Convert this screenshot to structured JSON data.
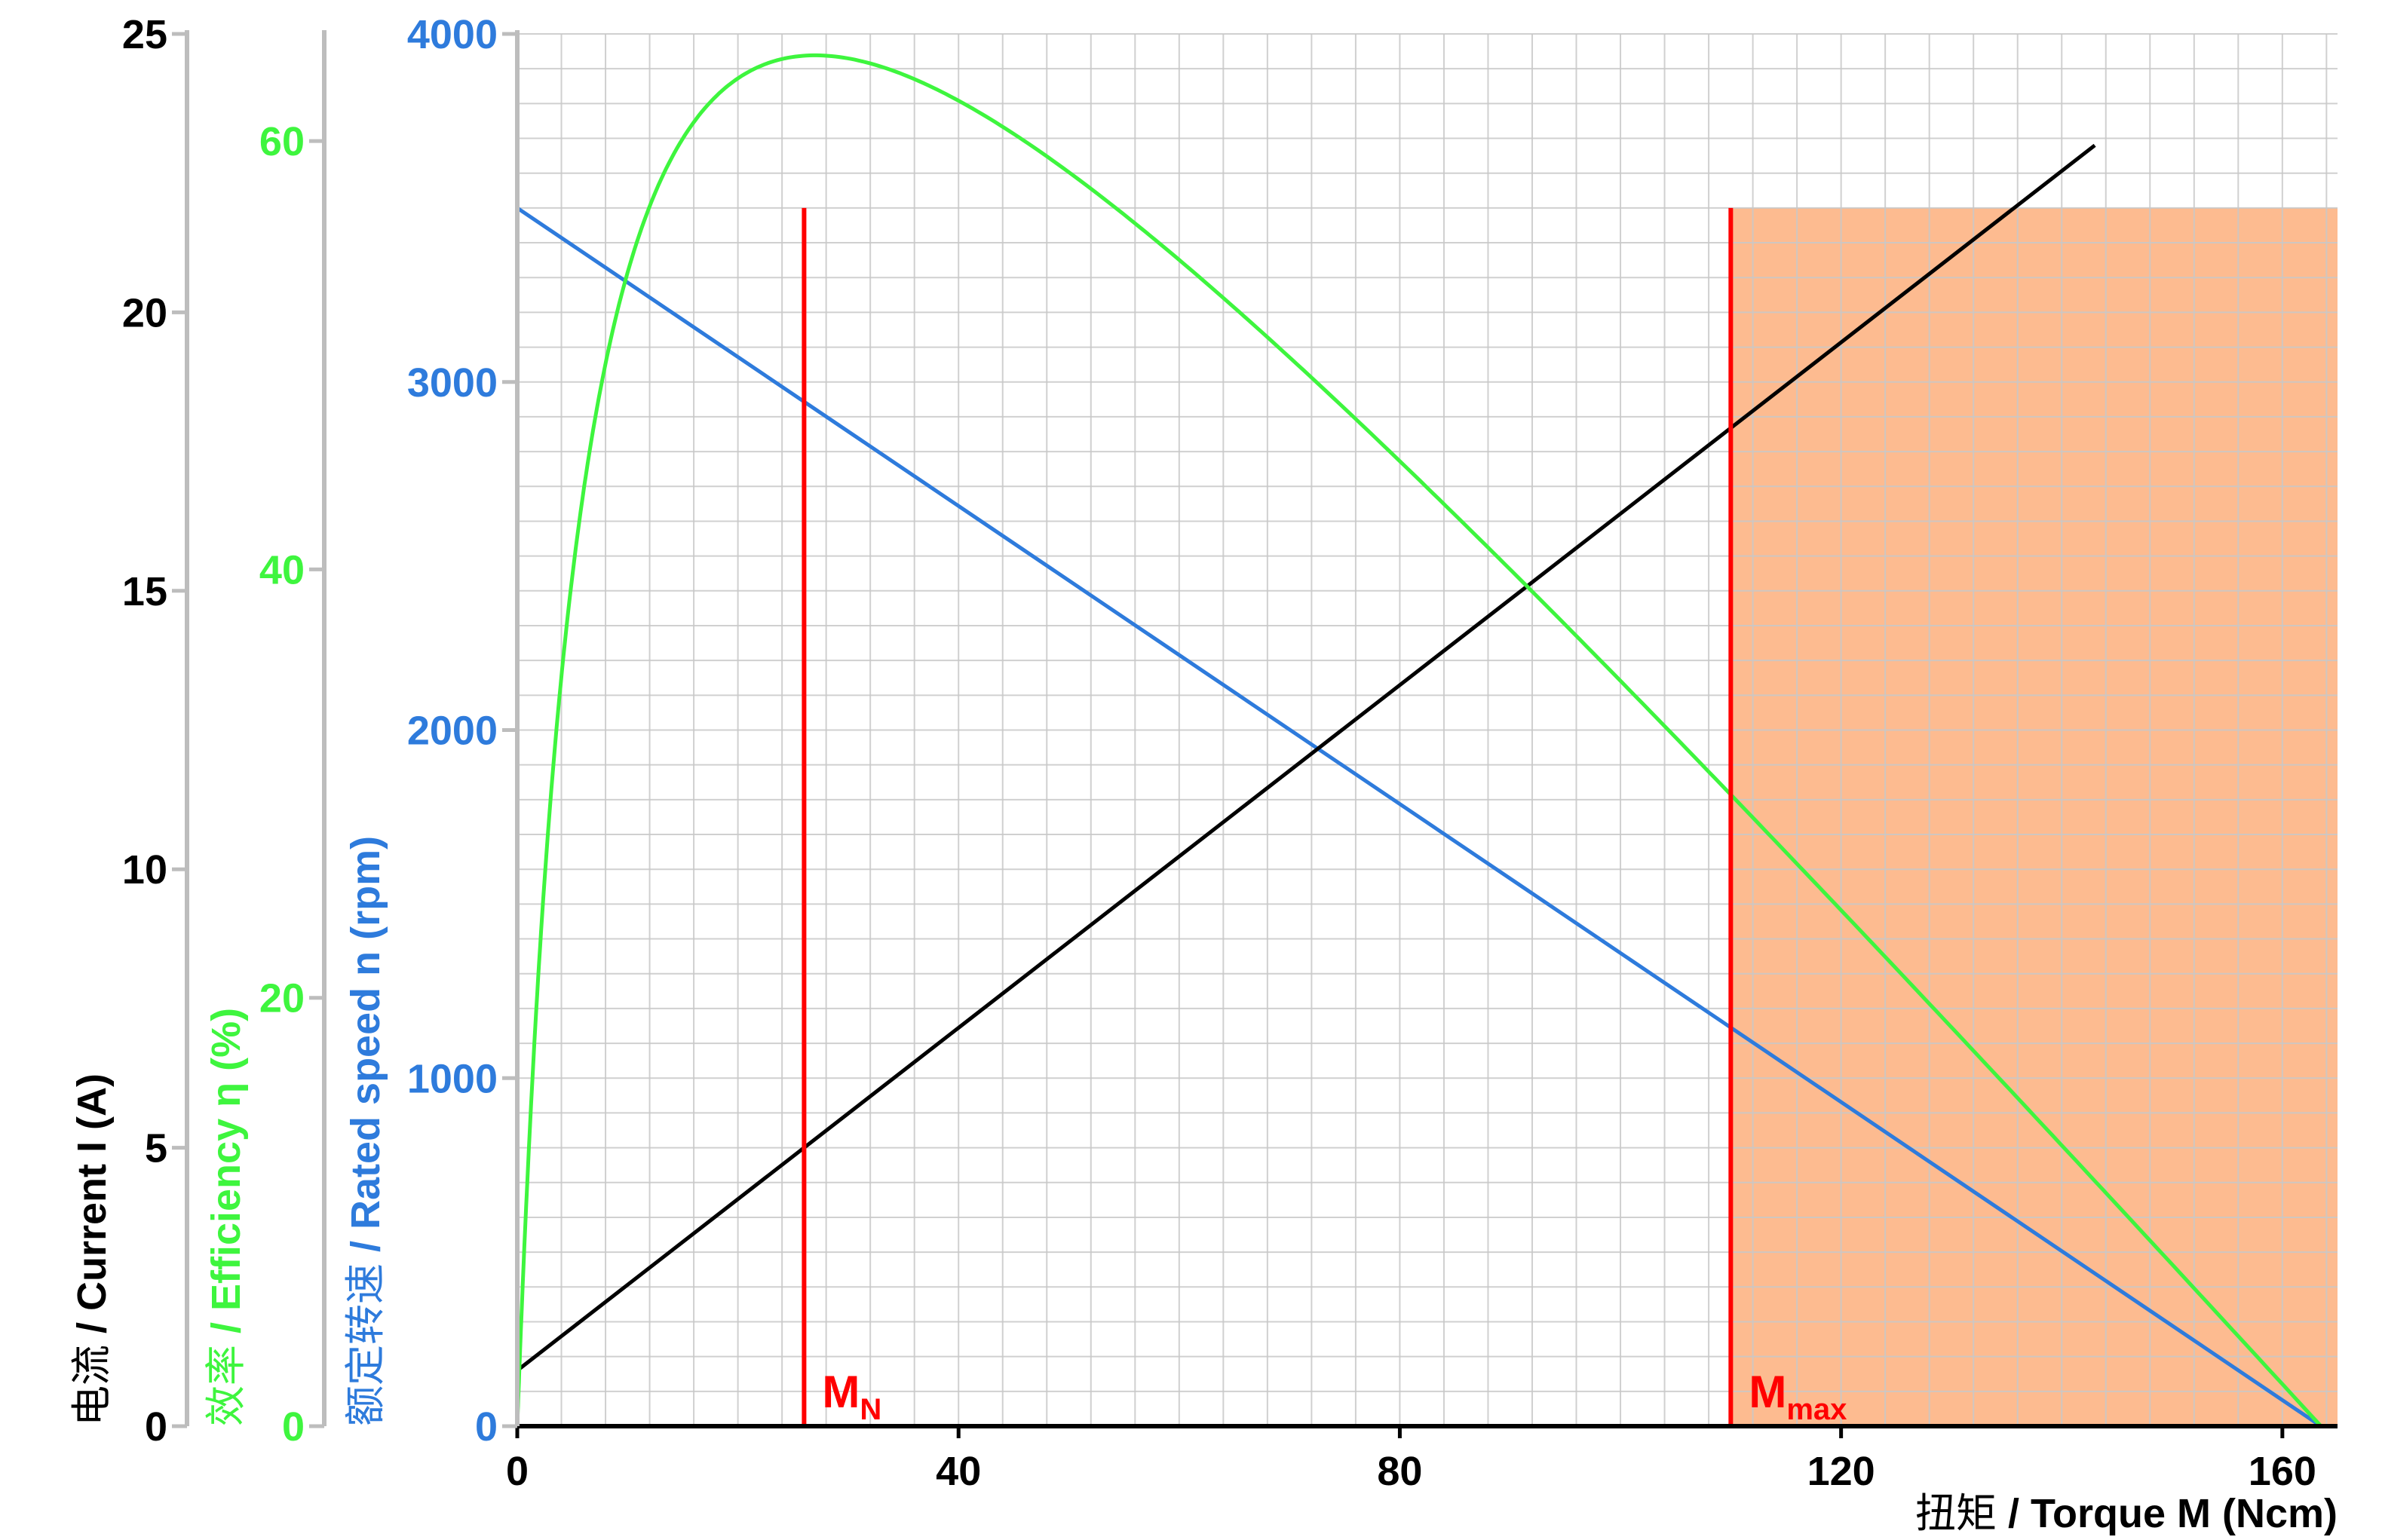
{
  "chart_data": {
    "type": "line",
    "xlabel": {
      "cjk": "扭矩",
      "en": " / Torque M (Ncm)"
    },
    "xlim": [
      0,
      165
    ],
    "xticks": [
      0,
      40,
      80,
      120,
      160
    ],
    "x_minor_step": 4,
    "grid": true,
    "axes": {
      "current": {
        "label_cjk": "电流",
        "label_en": " / Current I (A)",
        "ticks": [
          0,
          5,
          10,
          15,
          20,
          25
        ],
        "lim": [
          0,
          25
        ],
        "color": "#000000"
      },
      "efficiency": {
        "label_cjk": "效率",
        "label_en": " / Efficiency η  (%)",
        "ticks": [
          0,
          20,
          40,
          60
        ],
        "lim": [
          0,
          65
        ],
        "color": "#3ef53e"
      },
      "speed": {
        "label_cjk": "额定转速",
        "label_en": " / Rated speed n (rpm)",
        "ticks": [
          0,
          1000,
          2000,
          3000,
          4000
        ],
        "lim": [
          0,
          4000
        ],
        "color": "#2e7bdc"
      }
    },
    "series": [
      {
        "axis": "speed",
        "color": "#2e7bdc",
        "shape": "linear",
        "points": [
          [
            0,
            3500
          ],
          [
            163.5,
            0
          ]
        ]
      },
      {
        "axis": "current",
        "color": "#000000",
        "shape": "linear",
        "points": [
          [
            0,
            1.0
          ],
          [
            143,
            23.0
          ]
        ]
      },
      {
        "axis": "efficiency",
        "color": "#3ef53e",
        "shape": "efficiency",
        "t0": 163.5,
        "peak_x": 27,
        "peak_y": 64
      }
    ],
    "markers": [
      {
        "label": "M",
        "sub": "N",
        "x": 26,
        "top_value": 3500,
        "color": "#ff0000"
      },
      {
        "label": "M",
        "sub": "max",
        "x": 110,
        "top_value": 3500,
        "color": "#ff0000"
      }
    ],
    "shaded_region": {
      "x_from": 110,
      "x_to": 165,
      "y_top": 3500,
      "color": "#fdbb90"
    }
  }
}
